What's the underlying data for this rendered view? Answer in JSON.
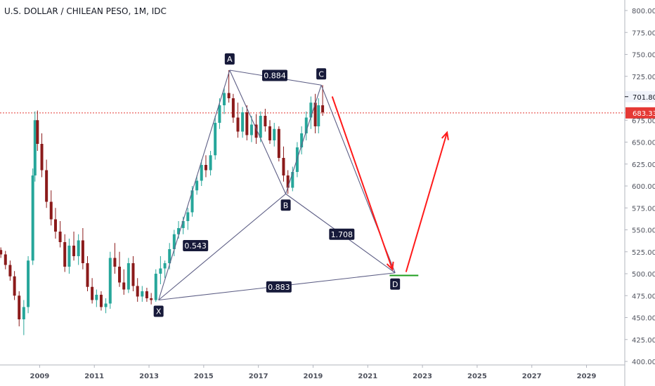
{
  "title": "U.S. DOLLAR / CHILEAN PESO, 1M, IDC",
  "colors": {
    "up": "#26a69a",
    "down": "#8b1a1a",
    "pattern": "#5d5e85",
    "arrow": "#ff1a1a",
    "target": "#1e9e1e",
    "price_line": "#e53935"
  },
  "chart_data": {
    "type": "candlestick",
    "y_ticks": [
      "800.00",
      "775.00",
      "750.00",
      "725.00",
      "701.80",
      "683.33",
      "675.00",
      "650.00",
      "625.00",
      "600.00",
      "575.00",
      "550.00",
      "525.00",
      "500.00",
      "475.00",
      "450.00",
      "425.00",
      "400.00"
    ],
    "y_tick_values": [
      800,
      775,
      750,
      725,
      701.8,
      683.33,
      675,
      650,
      625,
      600,
      575,
      550,
      525,
      500,
      475,
      450,
      425,
      400
    ],
    "x_ticks": [
      "2009",
      "2011",
      "2013",
      "2015",
      "2017",
      "2019",
      "2021",
      "2023",
      "2025",
      "2027",
      "2029"
    ],
    "x_tick_years": [
      2009,
      2011,
      2013,
      2015,
      2017,
      2019,
      2021,
      2023,
      2025,
      2027,
      2029
    ],
    "ylim": [
      396,
      812
    ],
    "xlim": [
      2007.55,
      2030.4
    ],
    "current_price": {
      "label": "683.33",
      "value": 683.33
    },
    "reference_price": {
      "label": "701.80",
      "value": 701.8
    },
    "pattern_points": [
      {
        "label": "X",
        "year": 2013.35,
        "price": 470
      },
      {
        "label": "A",
        "year": 2015.95,
        "price": 732
      },
      {
        "label": "B",
        "year": 2018.0,
        "price": 591
      },
      {
        "label": "C",
        "year": 2019.3,
        "price": 715
      },
      {
        "label": "D",
        "year": 2022.0,
        "price": 501
      }
    ],
    "ratios": [
      {
        "label": "0.884",
        "from": "A",
        "to": "C",
        "at_year": 2017.6,
        "at_price": 726
      },
      {
        "label": "0.543",
        "from": "X",
        "to": "B",
        "at_year": 2014.7,
        "at_price": 532
      },
      {
        "label": "1.708",
        "from": "B",
        "to": "D",
        "at_year": 2020.05,
        "at_price": 545
      },
      {
        "label": "0.883",
        "from": "X",
        "to": "D",
        "at_year": 2017.75,
        "at_price": 485
      }
    ],
    "annotations": {
      "down_arrow": {
        "from": [
          2019.7,
          702
        ],
        "to": [
          2021.9,
          505
        ]
      },
      "up_arrow": {
        "from": [
          2022.4,
          502
        ],
        "to": [
          2023.9,
          661
        ]
      },
      "target_line": {
        "from_year": 2021.8,
        "to_year": 2022.85,
        "price": 498
      }
    },
    "candles": [
      {
        "t": 2007.58,
        "o": 527,
        "h": 530,
        "l": 518,
        "c": 522
      },
      {
        "t": 2007.75,
        "o": 522,
        "h": 526,
        "l": 505,
        "c": 510
      },
      {
        "t": 2007.92,
        "o": 510,
        "h": 515,
        "l": 492,
        "c": 497
      },
      {
        "t": 2008.08,
        "o": 497,
        "h": 503,
        "l": 470,
        "c": 475
      },
      {
        "t": 2008.25,
        "o": 475,
        "h": 480,
        "l": 440,
        "c": 448
      },
      {
        "t": 2008.42,
        "o": 448,
        "h": 470,
        "l": 430,
        "c": 462
      },
      {
        "t": 2008.58,
        "o": 462,
        "h": 520,
        "l": 455,
        "c": 515
      },
      {
        "t": 2008.75,
        "o": 515,
        "h": 620,
        "l": 510,
        "c": 612
      },
      {
        "t": 2008.83,
        "o": 612,
        "h": 685,
        "l": 605,
        "c": 675
      },
      {
        "t": 2008.92,
        "o": 675,
        "h": 686,
        "l": 640,
        "c": 648
      },
      {
        "t": 2009.08,
        "o": 648,
        "h": 660,
        "l": 610,
        "c": 618
      },
      {
        "t": 2009.25,
        "o": 618,
        "h": 630,
        "l": 575,
        "c": 582
      },
      {
        "t": 2009.42,
        "o": 582,
        "h": 595,
        "l": 555,
        "c": 562
      },
      {
        "t": 2009.58,
        "o": 562,
        "h": 575,
        "l": 540,
        "c": 548
      },
      {
        "t": 2009.75,
        "o": 548,
        "h": 560,
        "l": 530,
        "c": 536
      },
      {
        "t": 2009.92,
        "o": 536,
        "h": 545,
        "l": 502,
        "c": 508
      },
      {
        "t": 2010.08,
        "o": 508,
        "h": 540,
        "l": 500,
        "c": 532
      },
      {
        "t": 2010.25,
        "o": 532,
        "h": 548,
        "l": 515,
        "c": 520
      },
      {
        "t": 2010.42,
        "o": 520,
        "h": 545,
        "l": 510,
        "c": 538
      },
      {
        "t": 2010.58,
        "o": 538,
        "h": 552,
        "l": 505,
        "c": 512
      },
      {
        "t": 2010.75,
        "o": 512,
        "h": 520,
        "l": 480,
        "c": 485
      },
      {
        "t": 2010.92,
        "o": 485,
        "h": 495,
        "l": 466,
        "c": 470
      },
      {
        "t": 2011.08,
        "o": 470,
        "h": 482,
        "l": 462,
        "c": 476
      },
      {
        "t": 2011.25,
        "o": 476,
        "h": 480,
        "l": 458,
        "c": 462
      },
      {
        "t": 2011.42,
        "o": 462,
        "h": 472,
        "l": 455,
        "c": 466
      },
      {
        "t": 2011.58,
        "o": 466,
        "h": 525,
        "l": 460,
        "c": 518
      },
      {
        "t": 2011.75,
        "o": 518,
        "h": 535,
        "l": 500,
        "c": 508
      },
      {
        "t": 2011.92,
        "o": 508,
        "h": 525,
        "l": 485,
        "c": 490
      },
      {
        "t": 2012.08,
        "o": 490,
        "h": 505,
        "l": 476,
        "c": 482
      },
      {
        "t": 2012.25,
        "o": 482,
        "h": 518,
        "l": 478,
        "c": 512
      },
      {
        "t": 2012.42,
        "o": 512,
        "h": 520,
        "l": 480,
        "c": 486
      },
      {
        "t": 2012.58,
        "o": 486,
        "h": 495,
        "l": 468,
        "c": 474
      },
      {
        "t": 2012.75,
        "o": 474,
        "h": 486,
        "l": 468,
        "c": 480
      },
      {
        "t": 2012.92,
        "o": 480,
        "h": 484,
        "l": 468,
        "c": 472
      },
      {
        "t": 2013.08,
        "o": 472,
        "h": 478,
        "l": 465,
        "c": 470
      },
      {
        "t": 2013.25,
        "o": 470,
        "h": 505,
        "l": 468,
        "c": 500
      },
      {
        "t": 2013.42,
        "o": 500,
        "h": 520,
        "l": 488,
        "c": 506
      },
      {
        "t": 2013.58,
        "o": 506,
        "h": 515,
        "l": 495,
        "c": 512
      },
      {
        "t": 2013.75,
        "o": 512,
        "h": 535,
        "l": 505,
        "c": 528
      },
      {
        "t": 2013.92,
        "o": 528,
        "h": 550,
        "l": 520,
        "c": 545
      },
      {
        "t": 2014.08,
        "o": 545,
        "h": 560,
        "l": 540,
        "c": 552
      },
      {
        "t": 2014.25,
        "o": 552,
        "h": 565,
        "l": 545,
        "c": 560
      },
      {
        "t": 2014.42,
        "o": 560,
        "h": 575,
        "l": 550,
        "c": 570
      },
      {
        "t": 2014.58,
        "o": 570,
        "h": 600,
        "l": 565,
        "c": 595
      },
      {
        "t": 2014.75,
        "o": 595,
        "h": 612,
        "l": 590,
        "c": 606
      },
      {
        "t": 2014.92,
        "o": 606,
        "h": 630,
        "l": 600,
        "c": 624
      },
      {
        "t": 2015.08,
        "o": 624,
        "h": 635,
        "l": 610,
        "c": 618
      },
      {
        "t": 2015.25,
        "o": 618,
        "h": 640,
        "l": 612,
        "c": 635
      },
      {
        "t": 2015.42,
        "o": 635,
        "h": 680,
        "l": 630,
        "c": 672
      },
      {
        "t": 2015.58,
        "o": 672,
        "h": 700,
        "l": 665,
        "c": 692
      },
      {
        "t": 2015.75,
        "o": 692,
        "h": 712,
        "l": 682,
        "c": 706
      },
      {
        "t": 2015.92,
        "o": 706,
        "h": 732,
        "l": 695,
        "c": 700
      },
      {
        "t": 2016.08,
        "o": 700,
        "h": 705,
        "l": 672,
        "c": 678
      },
      {
        "t": 2016.25,
        "o": 678,
        "h": 695,
        "l": 655,
        "c": 662
      },
      {
        "t": 2016.42,
        "o": 662,
        "h": 690,
        "l": 655,
        "c": 684
      },
      {
        "t": 2016.58,
        "o": 684,
        "h": 692,
        "l": 652,
        "c": 658
      },
      {
        "t": 2016.75,
        "o": 658,
        "h": 680,
        "l": 650,
        "c": 670
      },
      {
        "t": 2016.92,
        "o": 670,
        "h": 682,
        "l": 648,
        "c": 655
      },
      {
        "t": 2017.08,
        "o": 655,
        "h": 685,
        "l": 650,
        "c": 680
      },
      {
        "t": 2017.25,
        "o": 680,
        "h": 688,
        "l": 662,
        "c": 668
      },
      {
        "t": 2017.42,
        "o": 668,
        "h": 675,
        "l": 648,
        "c": 652
      },
      {
        "t": 2017.58,
        "o": 652,
        "h": 672,
        "l": 645,
        "c": 665
      },
      {
        "t": 2017.75,
        "o": 665,
        "h": 668,
        "l": 628,
        "c": 632
      },
      {
        "t": 2017.92,
        "o": 632,
        "h": 645,
        "l": 605,
        "c": 612
      },
      {
        "t": 2018.08,
        "o": 612,
        "h": 618,
        "l": 591,
        "c": 598
      },
      {
        "t": 2018.25,
        "o": 598,
        "h": 622,
        "l": 594,
        "c": 616
      },
      {
        "t": 2018.42,
        "o": 616,
        "h": 650,
        "l": 610,
        "c": 644
      },
      {
        "t": 2018.58,
        "o": 644,
        "h": 668,
        "l": 636,
        "c": 660
      },
      {
        "t": 2018.75,
        "o": 660,
        "h": 685,
        "l": 652,
        "c": 678
      },
      {
        "t": 2018.92,
        "o": 678,
        "h": 702,
        "l": 665,
        "c": 695
      },
      {
        "t": 2019.08,
        "o": 695,
        "h": 705,
        "l": 660,
        "c": 668
      },
      {
        "t": 2019.2,
        "o": 668,
        "h": 700,
        "l": 660,
        "c": 692
      },
      {
        "t": 2019.35,
        "o": 692,
        "h": 715,
        "l": 680,
        "c": 684
      }
    ]
  }
}
